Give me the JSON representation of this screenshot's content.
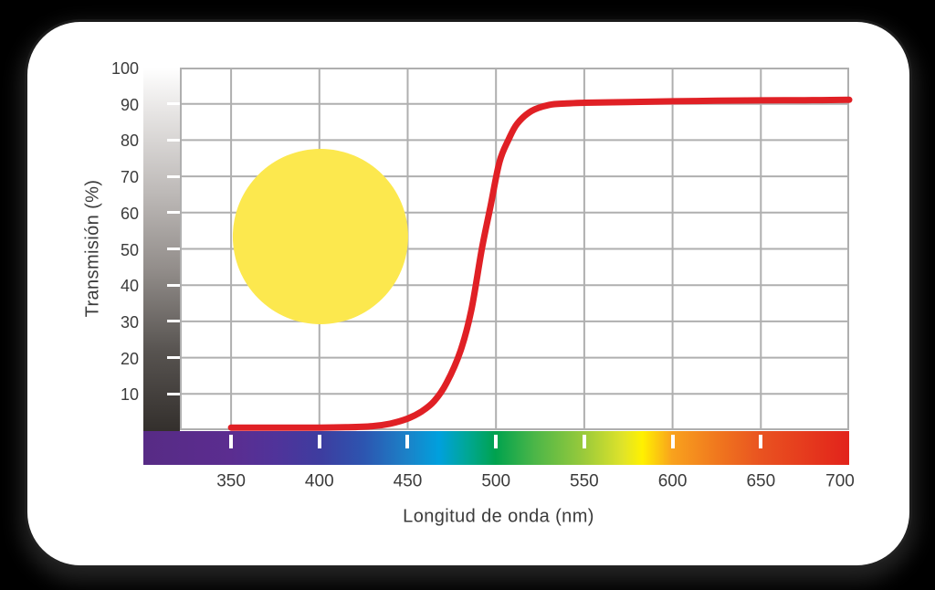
{
  "page": {
    "background": "#000000"
  },
  "card": {
    "background": "#FFFFFF"
  },
  "colors": {
    "grid": "#AFAFAF",
    "text": "#3B3B3B",
    "tick_mark": "#FFFFFF"
  },
  "chart_data": {
    "type": "line",
    "title": "",
    "xlabel": "Longitud de onda (nm)",
    "ylabel": "Transmisión (%)",
    "xlim": [
      321,
      700
    ],
    "ylim": [
      0,
      100
    ],
    "x_ticks": [
      350,
      400,
      450,
      500,
      550,
      600,
      650,
      700
    ],
    "y_ticks": [
      10,
      20,
      30,
      40,
      50,
      60,
      70,
      80,
      90,
      100
    ],
    "grid": true,
    "legend_position": "none",
    "series": [
      {
        "name": "filter-transmission-curve",
        "color": "#E02025",
        "stroke_width": 7,
        "points": [
          [
            350,
            0.7
          ],
          [
            375,
            0.7
          ],
          [
            400,
            0.7
          ],
          [
            415,
            0.8
          ],
          [
            430,
            1.1
          ],
          [
            440,
            1.8
          ],
          [
            450,
            3.2
          ],
          [
            458,
            5.2
          ],
          [
            465,
            8
          ],
          [
            472,
            13
          ],
          [
            480,
            22
          ],
          [
            486,
            33
          ],
          [
            492,
            50
          ],
          [
            497,
            62
          ],
          [
            502,
            74
          ],
          [
            507,
            80
          ],
          [
            512,
            84.5
          ],
          [
            520,
            88
          ],
          [
            530,
            89.7
          ],
          [
            540,
            90.1
          ],
          [
            550,
            90.3
          ],
          [
            575,
            90.5
          ],
          [
            600,
            90.7
          ],
          [
            625,
            90.85
          ],
          [
            650,
            90.95
          ],
          [
            675,
            91.0
          ],
          [
            700,
            91.1
          ]
        ]
      }
    ],
    "annotations": [
      {
        "type": "circle",
        "name": "yellow-filter-swatch",
        "x_nm": 400.6,
        "y_pct": 53.4,
        "radius_px": 96,
        "color": "#FCE84E"
      }
    ],
    "axis_decorations": {
      "y_grayscale_bar": {
        "direction": "top-to-bottom",
        "stops": [
          {
            "pos": 0.0,
            "color": "#FFFFFF"
          },
          {
            "pos": 0.12,
            "color": "#E7E5E4"
          },
          {
            "pos": 0.35,
            "color": "#BCB8B6"
          },
          {
            "pos": 0.55,
            "color": "#938E8B"
          },
          {
            "pos": 0.78,
            "color": "#575350"
          },
          {
            "pos": 1.0,
            "color": "#332F2C"
          }
        ]
      },
      "x_spectrum_bar": {
        "direction": "left-to-right",
        "stops": [
          {
            "pos": 0.0,
            "color": "#572B85"
          },
          {
            "pos": 0.124,
            "color": "#5B2D90"
          },
          {
            "pos": 0.187,
            "color": "#50339A"
          },
          {
            "pos": 0.249,
            "color": "#3E3C9F"
          },
          {
            "pos": 0.312,
            "color": "#2D55B0"
          },
          {
            "pos": 0.374,
            "color": "#1B82C8"
          },
          {
            "pos": 0.419,
            "color": "#00A0DD"
          },
          {
            "pos": 0.459,
            "color": "#00A795"
          },
          {
            "pos": 0.499,
            "color": "#00A24E"
          },
          {
            "pos": 0.554,
            "color": "#4BB648"
          },
          {
            "pos": 0.624,
            "color": "#9ACA3B"
          },
          {
            "pos": 0.679,
            "color": "#DFE32A"
          },
          {
            "pos": 0.707,
            "color": "#FFF100"
          },
          {
            "pos": 0.749,
            "color": "#F9A21D"
          },
          {
            "pos": 0.812,
            "color": "#F0781E"
          },
          {
            "pos": 0.874,
            "color": "#E95320"
          },
          {
            "pos": 1.0,
            "color": "#E2231B"
          }
        ]
      }
    }
  }
}
